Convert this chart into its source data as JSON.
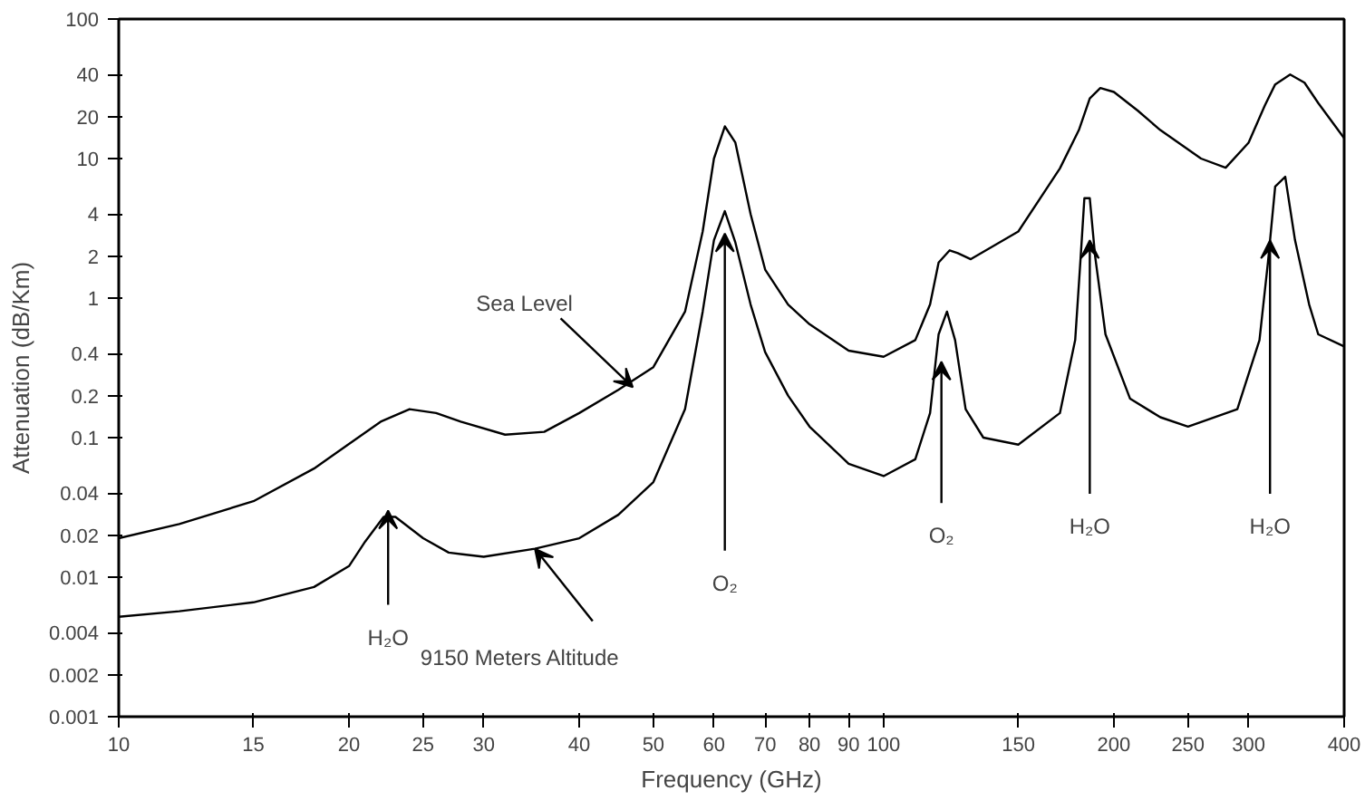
{
  "chart_data": {
    "type": "line",
    "xlabel": "Frequency (GHz)",
    "ylabel": "Attenuation (dB/Km)",
    "log": "xy",
    "grid": false,
    "marker": "none",
    "line_style": "solid",
    "xlim": [
      10,
      400
    ],
    "ylim": [
      0.001,
      100
    ],
    "xticks": [
      10,
      15,
      20,
      25,
      30,
      40,
      50,
      60,
      70,
      80,
      90,
      100,
      150,
      200,
      250,
      300,
      400
    ],
    "yticks": [
      0.001,
      0.002,
      0.004,
      0.01,
      0.02,
      0.04,
      0.1,
      0.2,
      0.4,
      1,
      2,
      4,
      10,
      20,
      40,
      100
    ],
    "series": [
      {
        "color": "#000000",
        "x": [
          10,
          12,
          15,
          18,
          20,
          22,
          24,
          26,
          28,
          32,
          36,
          40,
          45,
          50,
          55,
          58,
          60,
          62,
          64,
          67,
          70,
          75,
          80,
          90,
          100,
          110,
          115,
          118,
          122,
          125,
          130,
          150,
          170,
          180,
          186,
          192,
          200,
          215,
          230,
          260,
          280,
          300,
          315,
          325,
          340,
          355,
          370,
          400
        ],
        "values": [
          0.019,
          0.024,
          0.035,
          0.06,
          0.09,
          0.13,
          0.16,
          0.15,
          0.13,
          0.105,
          0.11,
          0.15,
          0.22,
          0.32,
          0.8,
          3,
          10,
          17,
          13,
          4,
          1.6,
          0.9,
          0.65,
          0.42,
          0.38,
          0.5,
          0.9,
          1.8,
          2.2,
          2.1,
          1.9,
          3,
          8.5,
          16,
          27,
          32,
          30,
          22,
          16,
          10,
          8.6,
          13,
          24,
          34,
          40,
          35,
          25,
          14
        ]
      },
      {
        "color": "#000000",
        "x": [
          10,
          12,
          15,
          18,
          20,
          21,
          22.2,
          23,
          25,
          27,
          30,
          35,
          40,
          45,
          50,
          55,
          58,
          60,
          62,
          64,
          67,
          70,
          75,
          80,
          90,
          100,
          110,
          115,
          118,
          121,
          124,
          128,
          135,
          150,
          170,
          178,
          181,
          183,
          186,
          189,
          195,
          210,
          230,
          250,
          290,
          310,
          318,
          325,
          335,
          345,
          360,
          370,
          400
        ],
        "values": [
          0.0052,
          0.0057,
          0.0066,
          0.0085,
          0.012,
          0.018,
          0.027,
          0.027,
          0.019,
          0.015,
          0.014,
          0.016,
          0.019,
          0.028,
          0.048,
          0.16,
          0.8,
          2.6,
          4.2,
          2.5,
          0.9,
          0.41,
          0.2,
          0.12,
          0.065,
          0.053,
          0.07,
          0.15,
          0.55,
          0.8,
          0.5,
          0.16,
          0.1,
          0.089,
          0.15,
          0.5,
          2,
          5.2,
          5.2,
          2,
          0.55,
          0.19,
          0.14,
          0.12,
          0.16,
          0.5,
          1.8,
          6.3,
          7.4,
          2.6,
          0.9,
          0.55,
          0.45
        ]
      }
    ],
    "annotations": [
      {
        "text": "Sea Level",
        "x": 47,
        "y": 0.23
      },
      {
        "text": "9150 Meters Altitude",
        "x": 35,
        "y": 0.016
      },
      {
        "text": "H₂O",
        "x": 22.5,
        "y": 0.03
      },
      {
        "text": "O₂",
        "x": 62,
        "y": 2.9
      },
      {
        "text": "O₂",
        "x": 119,
        "y": 0.35
      },
      {
        "text": "H₂O",
        "x": 186,
        "y": 2.6
      },
      {
        "text": "H₂O",
        "x": 320,
        "y": 2.6
      }
    ]
  }
}
